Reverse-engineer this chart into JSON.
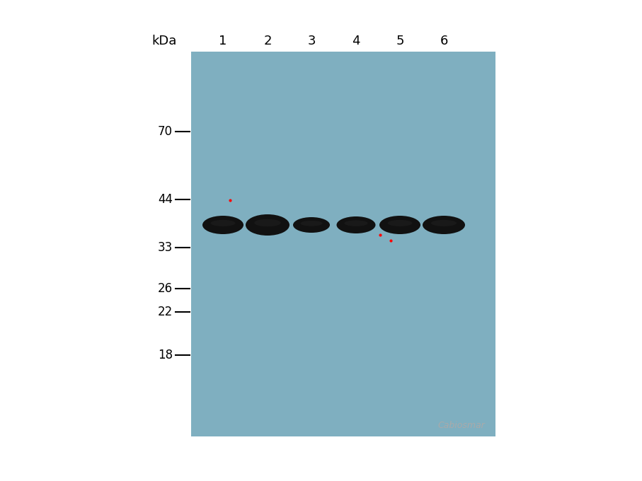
{
  "background_color": "#ffffff",
  "gel_color": "#7fafc0",
  "fig_width": 9.07,
  "fig_height": 6.8,
  "dpi": 100,
  "lane_labels": [
    "1",
    "2",
    "3",
    "4",
    "5",
    "6"
  ],
  "kda_label": "kDa",
  "marker_kda": [
    70,
    44,
    33,
    26,
    22,
    18
  ],
  "watermark_text": "Cabiosmar",
  "watermark_color": "#aaaaaa",
  "band_color": "#111111",
  "gel_bg": "#7fafc0",
  "red_dot_color": "#ff0000"
}
